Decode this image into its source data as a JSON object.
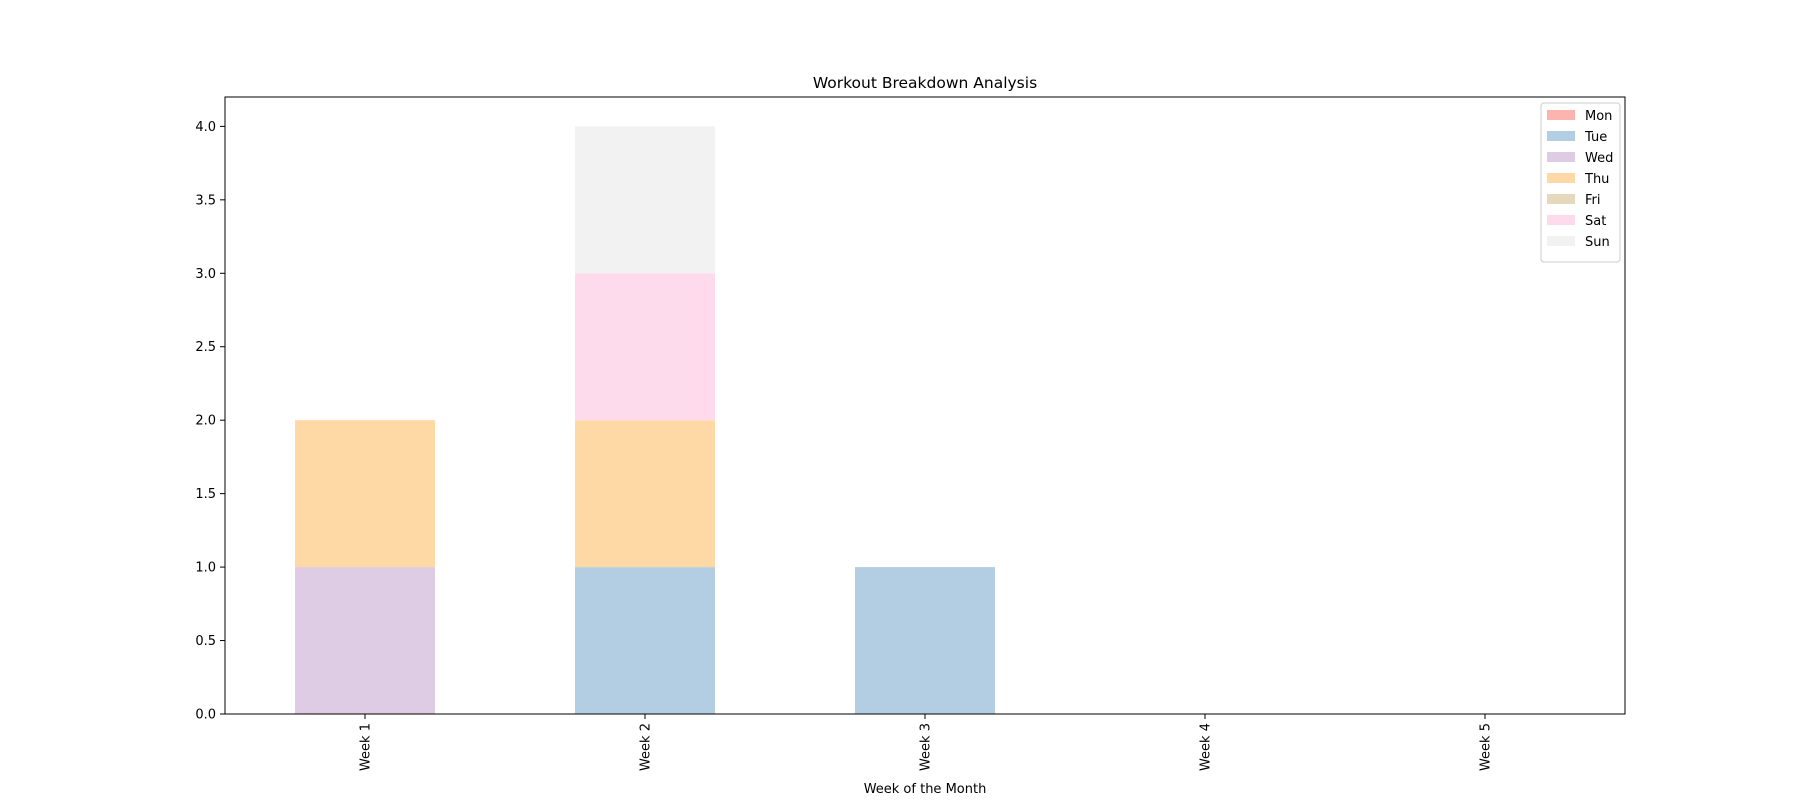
{
  "chart_data": {
    "type": "bar",
    "stacked": true,
    "title": "Workout Breakdown Analysis",
    "xlabel": "Week of the Month",
    "ylabel": "",
    "categories": [
      "Week 1",
      "Week 2",
      "Week 3",
      "Week 4",
      "Week 5"
    ],
    "ylim": [
      0,
      4.2
    ],
    "yticks": [
      "0.0",
      "0.5",
      "1.0",
      "1.5",
      "2.0",
      "2.5",
      "3.0",
      "3.5",
      "4.0"
    ],
    "legend_position": "top-right",
    "grid": false,
    "series": [
      {
        "name": "Mon",
        "color": "#fbb4ae",
        "values": [
          0,
          0,
          0,
          0,
          0
        ]
      },
      {
        "name": "Tue",
        "color": "#b3cde3",
        "values": [
          0,
          1,
          1,
          0,
          0
        ]
      },
      {
        "name": "Wed",
        "color": "#decbe4",
        "values": [
          1,
          0,
          0,
          0,
          0
        ]
      },
      {
        "name": "Thu",
        "color": "#fed9a6",
        "values": [
          1,
          1,
          0,
          0,
          0
        ]
      },
      {
        "name": "Fri",
        "color": "#e5d8bd",
        "values": [
          0,
          0,
          0,
          0,
          0
        ]
      },
      {
        "name": "Sat",
        "color": "#fddaec",
        "values": [
          0,
          1,
          0,
          0,
          0
        ]
      },
      {
        "name": "Sun",
        "color": "#f2f2f2",
        "values": [
          0,
          1,
          0,
          0,
          0
        ]
      }
    ]
  }
}
